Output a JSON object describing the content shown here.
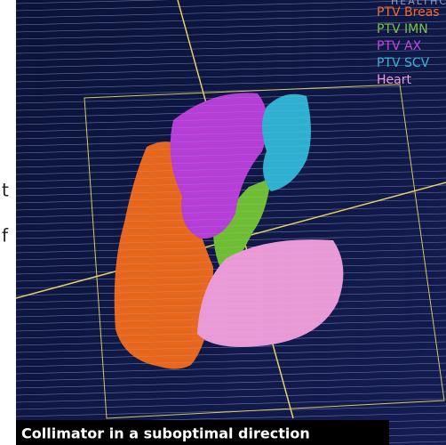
{
  "header": "HEALTHCARE",
  "side_fragments": [
    "t",
    "f"
  ],
  "legend": [
    {
      "label": "PTV Breas",
      "color": "#f26b2a"
    },
    {
      "label": "PTV IMN",
      "color": "#7ec242"
    },
    {
      "label": "PTV AX",
      "color": "#c447e0"
    },
    {
      "label": "PTV SCV",
      "color": "#33b7d4"
    },
    {
      "label": "Heart",
      "color": "#f19ad8"
    }
  ],
  "caption": "Collimator in a suboptimal direction"
}
